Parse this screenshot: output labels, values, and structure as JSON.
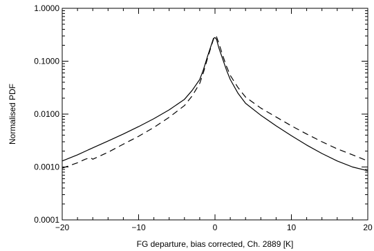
{
  "chart_data": {
    "type": "line",
    "title": "",
    "xlabel": "FG departure, bias corrected, Ch. 2889 [K]",
    "ylabel": "Normalised PDF",
    "xlim": [
      -20,
      20
    ],
    "ylim": [
      0.0001,
      1.0
    ],
    "yscale": "log",
    "grid": false,
    "legend": "none",
    "x_ticks": [
      -20,
      -10,
      0,
      10,
      20
    ],
    "x_tick_labels": [
      "−20",
      "−10",
      "0",
      "10",
      "20"
    ],
    "y_ticks": [
      0.0001,
      0.001,
      0.01,
      0.1,
      1.0
    ],
    "y_tick_labels": [
      "0.0001",
      "0.0010",
      "0.0100",
      "0.1000",
      "1.0000"
    ],
    "series": [
      {
        "style": "solid",
        "color": "#000000",
        "x": [
          -20,
          -18,
          -16,
          -14,
          -12,
          -10,
          -8,
          -6,
          -4,
          -3,
          -2,
          -1.5,
          -1,
          -0.5,
          -0.2,
          0,
          0.2,
          0.5,
          1,
          1.5,
          2,
          3,
          4,
          6,
          8,
          10,
          12,
          14,
          16,
          18,
          20
        ],
        "y": [
          0.0013,
          0.0017,
          0.0023,
          0.0031,
          0.0042,
          0.0058,
          0.0082,
          0.012,
          0.019,
          0.028,
          0.045,
          0.07,
          0.12,
          0.2,
          0.27,
          0.28,
          0.26,
          0.18,
          0.11,
          0.068,
          0.045,
          0.025,
          0.016,
          0.0095,
          0.006,
          0.0039,
          0.0026,
          0.0018,
          0.0013,
          0.001,
          0.00085
        ]
      },
      {
        "style": "dashed",
        "color": "#000000",
        "x": [
          -20,
          -18,
          -17,
          -16.3,
          -16,
          -14,
          -12,
          -10,
          -8,
          -6,
          -4,
          -3,
          -2,
          -1.5,
          -1,
          -0.5,
          -0.2,
          0,
          0.2,
          0.5,
          1,
          1.5,
          2,
          3,
          4,
          6,
          8,
          10,
          12,
          14,
          16,
          18,
          20
        ],
        "y": [
          0.00095,
          0.0012,
          0.0014,
          0.0015,
          0.0014,
          0.0019,
          0.0027,
          0.0038,
          0.0056,
          0.0087,
          0.0145,
          0.022,
          0.038,
          0.062,
          0.11,
          0.19,
          0.26,
          0.3,
          0.29,
          0.22,
          0.13,
          0.08,
          0.054,
          0.032,
          0.021,
          0.013,
          0.0088,
          0.006,
          0.0042,
          0.003,
          0.0022,
          0.0017,
          0.0013
        ]
      }
    ]
  }
}
